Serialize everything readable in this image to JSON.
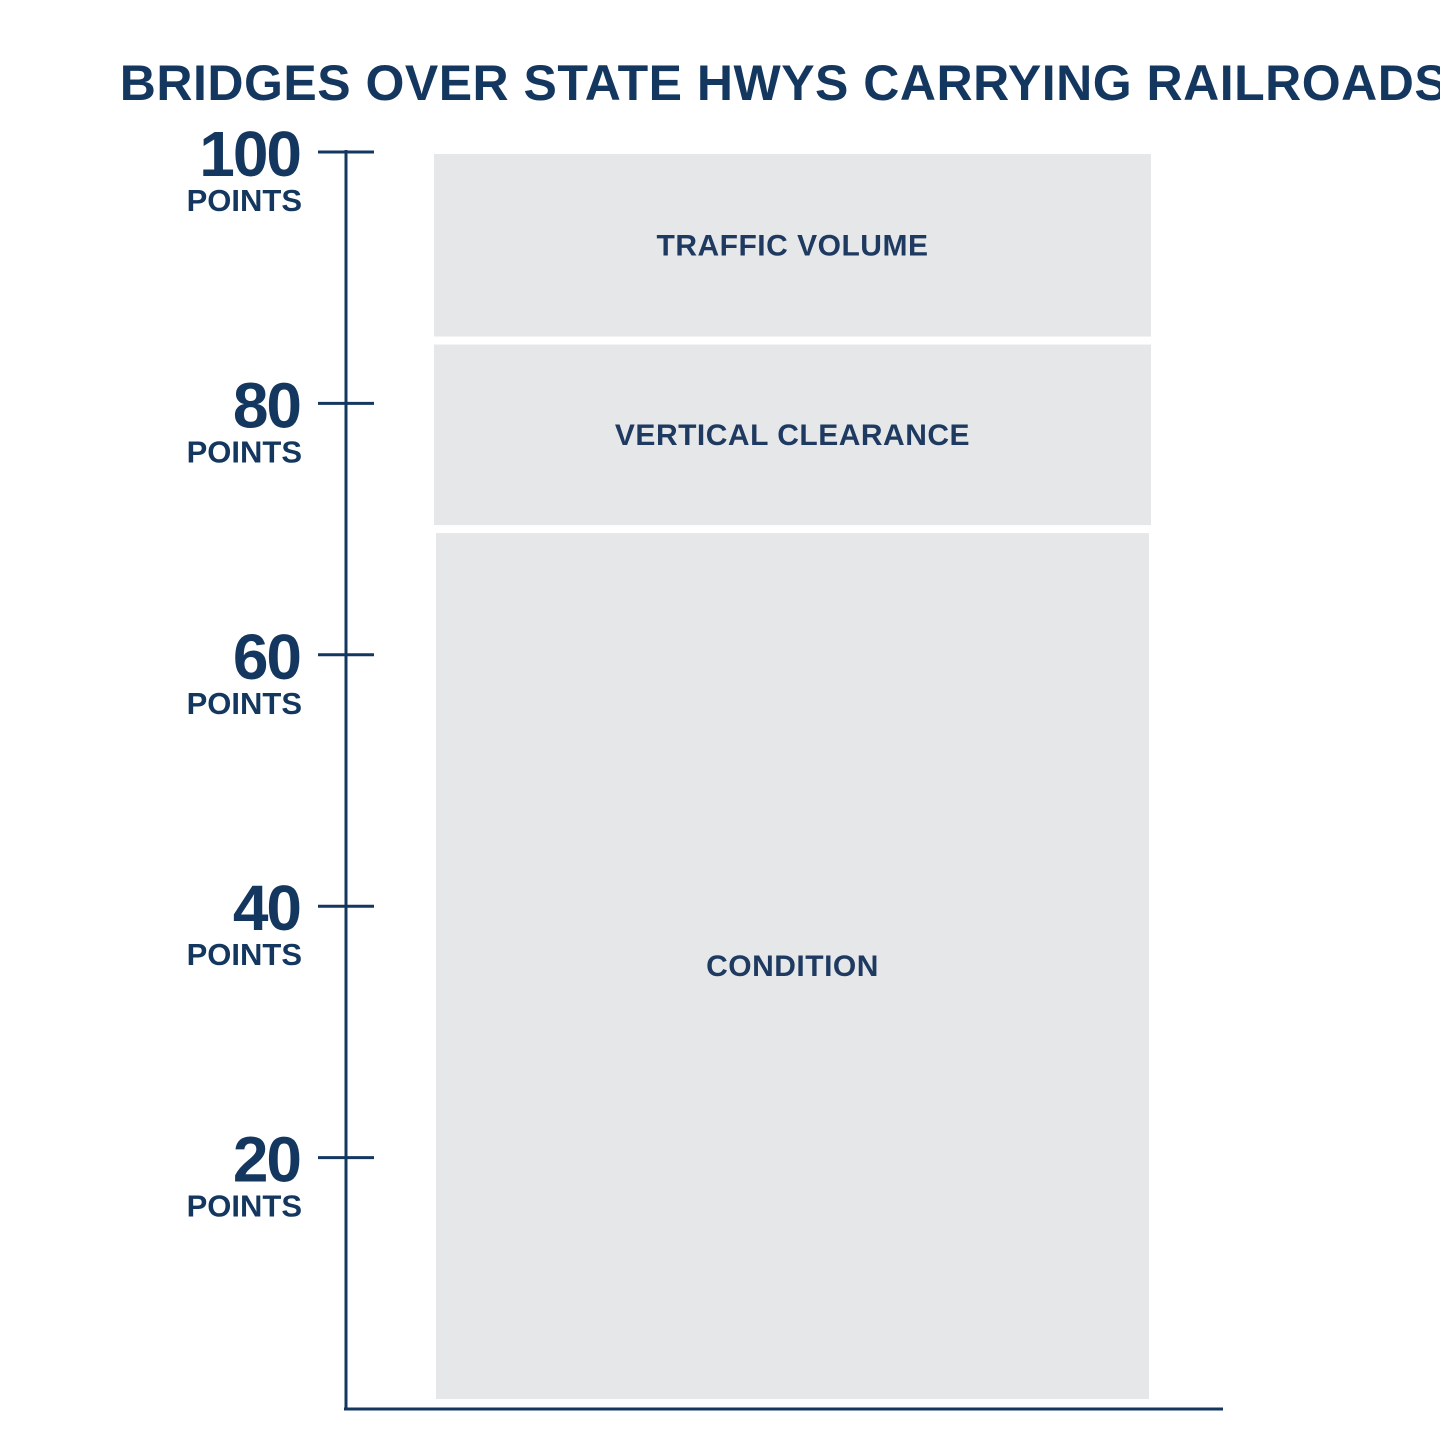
{
  "chart_data": {
    "type": "bar",
    "stacked": true,
    "title": "BRIDGES OVER STATE HWYS CARRYING RAILROADS",
    "xlabel": "",
    "ylabel": "",
    "ylim": [
      0,
      100
    ],
    "y_ticks": [
      {
        "value": 100,
        "label": "100",
        "unit": "POINTS"
      },
      {
        "value": 80,
        "label": "80",
        "unit": "POINTS"
      },
      {
        "value": 60,
        "label": "60",
        "unit": "POINTS"
      },
      {
        "value": 40,
        "label": "40",
        "unit": "POINTS"
      },
      {
        "value": 20,
        "label": "20",
        "unit": "POINTS"
      }
    ],
    "segments": [
      {
        "label": "CONDITION",
        "value": 70
      },
      {
        "label": "VERTICAL CLEARANCE",
        "value": 15
      },
      {
        "label": "TRAFFIC VOLUME",
        "value": 15
      }
    ],
    "grid": false,
    "colors": {
      "text": "#14375f",
      "axis": "#14375f",
      "bar": "#e6e7e9"
    }
  }
}
